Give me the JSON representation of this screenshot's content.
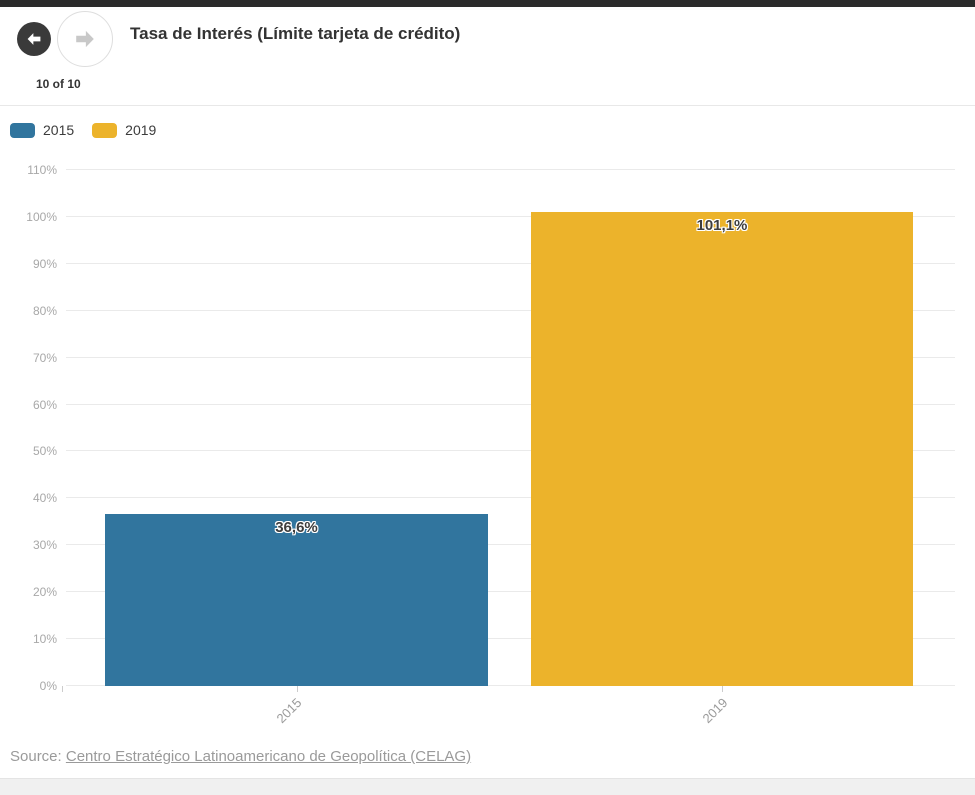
{
  "nav": {
    "position": "10 of 10",
    "back_icon": "arrow-left",
    "forward_icon": "arrow-right"
  },
  "header": {
    "title": "Tasa de Interés (Límite tarjeta de crédito)"
  },
  "legend": {
    "items": [
      {
        "label": "2015",
        "color": "#31759e"
      },
      {
        "label": "2019",
        "color": "#ecb32b"
      }
    ]
  },
  "chart_data": {
    "type": "bar",
    "title": "Tasa de Interés (Límite tarjeta de crédito)",
    "categories": [
      "2015",
      "2019"
    ],
    "values": [
      36.6,
      101.1
    ],
    "value_labels": [
      "36,6%",
      "101,1%"
    ],
    "bar_colors": [
      "#31759e",
      "#ecb32b"
    ],
    "xlabel": "",
    "ylabel": "",
    "ylim": [
      0,
      110
    ],
    "ytick_step": 10,
    "ytick_labels": [
      "0%",
      "10%",
      "20%",
      "30%",
      "40%",
      "50%",
      "60%",
      "70%",
      "80%",
      "90%",
      "100%",
      "110%"
    ],
    "grid": true,
    "legend_position": "top-left",
    "legend_entries": [
      "2015",
      "2019"
    ]
  },
  "source": {
    "prefix": "Source:",
    "link_text": "Centro Estratégico Latinoamericano de Geopolítica (CELAG)"
  }
}
